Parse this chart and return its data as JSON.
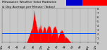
{
  "title": "Milwaukee Weather Solar Radiation & Day Average per Minute (Today)",
  "background_color": "#c8c8c8",
  "plot_background": "#c8c8c8",
  "bar_color": "#ff0000",
  "avg_line_color": "#0055ff",
  "avg_value": 0.28,
  "ylim": [
    0,
    1.0
  ],
  "xlim": [
    0,
    1439
  ],
  "num_points": 1440,
  "legend_bar_blue": "#0000cc",
  "legend_bar_red": "#ff0000",
  "grid_color": "#888888",
  "tick_label_fontsize": 2.8,
  "title_fontsize": 3.2,
  "ytick_labels": [
    "0",
    "1",
    "2",
    "3",
    "4",
    "5",
    "6",
    "7",
    "8"
  ],
  "xtick_positions": [
    0,
    120,
    240,
    360,
    480,
    600,
    720,
    840,
    960,
    1080,
    1200,
    1320,
    1439
  ],
  "xtick_labels": [
    "12a",
    "2a",
    "4a",
    "6a",
    "8a",
    "10a",
    "12p",
    "2p",
    "4p",
    "6p",
    "8p",
    "10p",
    "12a"
  ]
}
